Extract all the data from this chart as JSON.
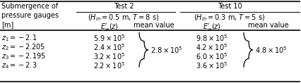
{
  "col0_header": "Submergence of\npressure gauges\n[m]",
  "test2_title": "Test 2",
  "test2_subtitle": "$(H_{in} = 0.5$ m, $T = 8$ s)",
  "test10_title": "Test 10",
  "test10_subtitle": "$(H_{in} = 0.3$ m, $T = 5$ s)",
  "subheader_ew": "$E_w^{\\prime}(z)$",
  "subheader_mean": "mean value",
  "row_labels": [
    "$z_1 = -2.1$",
    "$z_2 = -2.205$",
    "$z_3 = -2.195$",
    "$z_4 = -2.3$"
  ],
  "test2_ew": [
    "$5.9 \\times 10^5$",
    "$2.4 \\times 10^5$",
    "$3.2 \\times 10^5$",
    "$2.2 \\times 10^5$"
  ],
  "test2_mean": "$2.8 \\times 10^5$",
  "test10_ew": [
    "$9.8 \\times 10^5$",
    "$4.2 \\times 10^5$",
    "$6.0 \\times 10^5$",
    "$3.6 \\times 10^5$"
  ],
  "test10_mean": "$4.8 \\times 10^5$",
  "bg_color": "#ffffff",
  "text_color": "#000000",
  "fs": 7.0
}
